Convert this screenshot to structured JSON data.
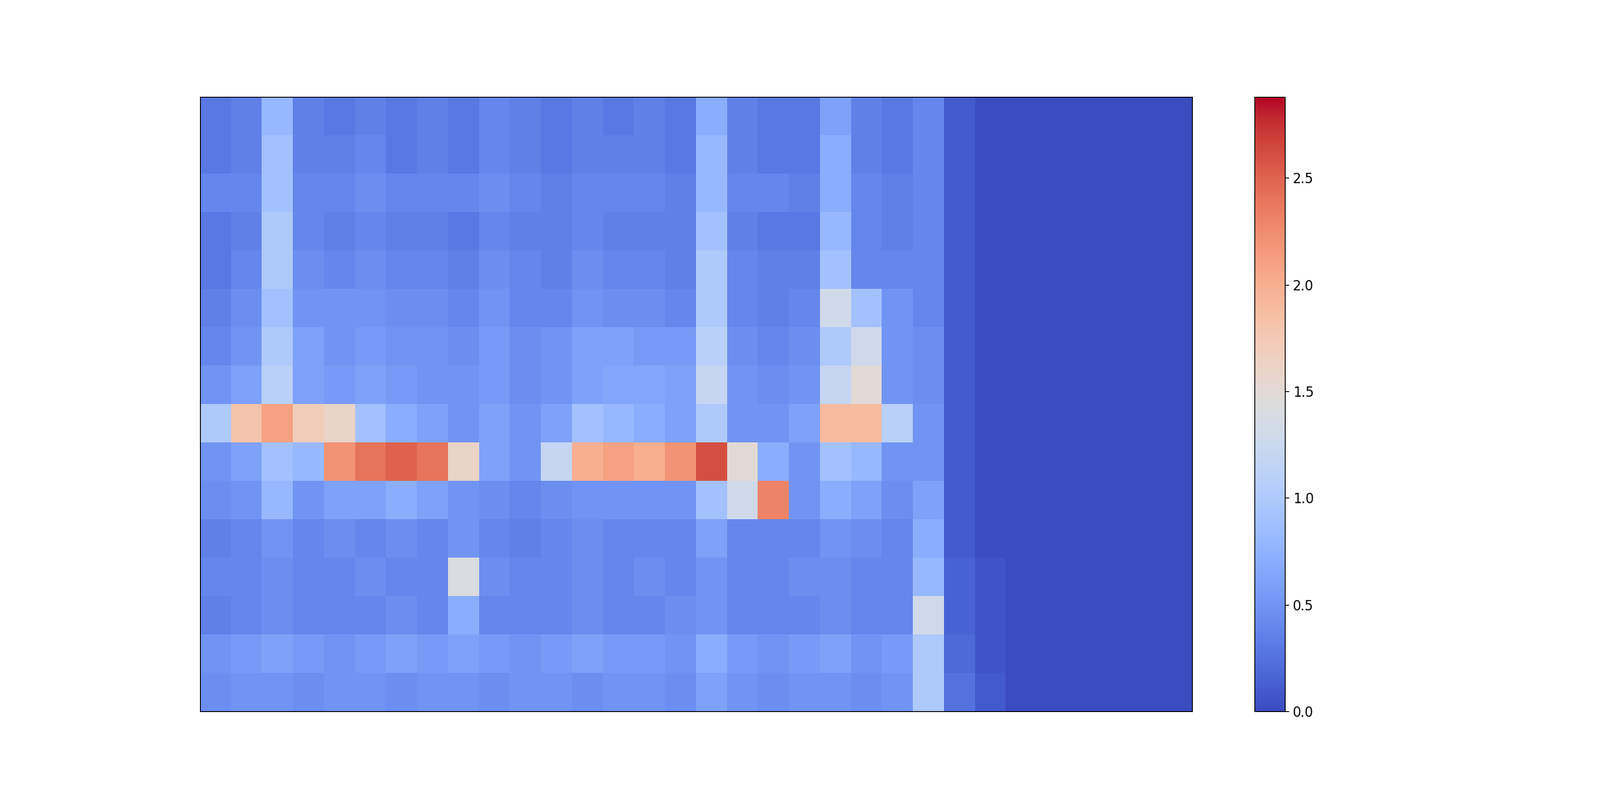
{
  "chart_data": {
    "type": "heatmap",
    "tick_labels": false,
    "cells": [
      [
        0.3,
        0.35,
        0.8,
        0.35,
        0.3,
        0.35,
        0.3,
        0.35,
        0.3,
        0.4,
        0.35,
        0.3,
        0.35,
        0.3,
        0.35,
        0.3,
        0.7,
        0.35,
        0.3,
        0.3,
        0.6,
        0.35,
        0.3,
        0.4,
        0.1,
        0,
        0,
        0,
        0,
        0,
        0,
        0
      ],
      [
        0.3,
        0.35,
        0.9,
        0.35,
        0.35,
        0.4,
        0.3,
        0.35,
        0.3,
        0.4,
        0.35,
        0.3,
        0.35,
        0.35,
        0.35,
        0.3,
        0.8,
        0.35,
        0.3,
        0.3,
        0.7,
        0.35,
        0.3,
        0.4,
        0.1,
        0,
        0,
        0,
        0,
        0,
        0,
        0
      ],
      [
        0.4,
        0.4,
        0.9,
        0.4,
        0.4,
        0.45,
        0.4,
        0.4,
        0.4,
        0.45,
        0.4,
        0.35,
        0.4,
        0.4,
        0.4,
        0.35,
        0.8,
        0.4,
        0.4,
        0.35,
        0.7,
        0.4,
        0.35,
        0.4,
        0.1,
        0,
        0,
        0,
        0,
        0,
        0,
        0
      ],
      [
        0.3,
        0.35,
        1.0,
        0.4,
        0.35,
        0.4,
        0.35,
        0.35,
        0.3,
        0.4,
        0.35,
        0.35,
        0.4,
        0.35,
        0.35,
        0.35,
        0.9,
        0.35,
        0.3,
        0.3,
        0.8,
        0.4,
        0.35,
        0.4,
        0.1,
        0,
        0,
        0,
        0,
        0,
        0,
        0
      ],
      [
        0.3,
        0.4,
        1.0,
        0.45,
        0.4,
        0.45,
        0.4,
        0.4,
        0.35,
        0.45,
        0.4,
        0.35,
        0.45,
        0.4,
        0.4,
        0.35,
        1.0,
        0.4,
        0.35,
        0.35,
        0.9,
        0.4,
        0.4,
        0.4,
        0.1,
        0,
        0,
        0,
        0,
        0,
        0,
        0
      ],
      [
        0.35,
        0.45,
        0.9,
        0.5,
        0.5,
        0.5,
        0.45,
        0.45,
        0.4,
        0.5,
        0.4,
        0.4,
        0.5,
        0.45,
        0.45,
        0.4,
        1.0,
        0.4,
        0.35,
        0.4,
        1.3,
        0.9,
        0.5,
        0.4,
        0.1,
        0,
        0,
        0,
        0,
        0,
        0,
        0
      ],
      [
        0.4,
        0.5,
        1.0,
        0.6,
        0.5,
        0.55,
        0.5,
        0.5,
        0.45,
        0.55,
        0.45,
        0.5,
        0.6,
        0.6,
        0.55,
        0.55,
        1.1,
        0.45,
        0.4,
        0.45,
        1.0,
        1.3,
        0.5,
        0.45,
        0.1,
        0,
        0,
        0,
        0,
        0,
        0,
        0
      ],
      [
        0.5,
        0.6,
        1.1,
        0.6,
        0.55,
        0.6,
        0.55,
        0.5,
        0.5,
        0.55,
        0.45,
        0.5,
        0.6,
        0.65,
        0.65,
        0.6,
        1.2,
        0.5,
        0.45,
        0.5,
        1.2,
        1.5,
        0.5,
        0.45,
        0.1,
        0,
        0,
        0,
        0,
        0,
        0,
        0
      ],
      [
        1.0,
        1.8,
        2.1,
        1.7,
        1.6,
        0.9,
        0.7,
        0.6,
        0.5,
        0.6,
        0.5,
        0.6,
        0.9,
        0.8,
        0.7,
        0.6,
        1.0,
        0.5,
        0.5,
        0.6,
        1.9,
        1.9,
        1.1,
        0.5,
        0.1,
        0,
        0,
        0,
        0,
        0,
        0,
        0
      ],
      [
        0.5,
        0.6,
        0.9,
        0.8,
        2.2,
        2.4,
        2.5,
        2.4,
        1.6,
        0.6,
        0.5,
        1.2,
        2.0,
        2.1,
        2.0,
        2.2,
        2.6,
        1.5,
        0.7,
        0.5,
        0.9,
        0.8,
        0.5,
        0.5,
        0.1,
        0,
        0,
        0,
        0,
        0,
        0,
        0
      ],
      [
        0.45,
        0.5,
        0.8,
        0.5,
        0.6,
        0.6,
        0.7,
        0.6,
        0.5,
        0.45,
        0.4,
        0.45,
        0.5,
        0.5,
        0.5,
        0.5,
        0.9,
        1.3,
        2.3,
        0.5,
        0.7,
        0.6,
        0.45,
        0.6,
        0.1,
        0,
        0,
        0,
        0,
        0,
        0,
        0
      ],
      [
        0.35,
        0.4,
        0.5,
        0.4,
        0.45,
        0.4,
        0.45,
        0.4,
        0.5,
        0.4,
        0.35,
        0.4,
        0.45,
        0.4,
        0.4,
        0.4,
        0.6,
        0.4,
        0.4,
        0.4,
        0.5,
        0.45,
        0.4,
        0.7,
        0.1,
        0,
        0,
        0,
        0,
        0,
        0,
        0
      ],
      [
        0.4,
        0.4,
        0.45,
        0.4,
        0.4,
        0.45,
        0.4,
        0.4,
        1.4,
        0.45,
        0.4,
        0.4,
        0.45,
        0.4,
        0.45,
        0.4,
        0.5,
        0.4,
        0.4,
        0.45,
        0.45,
        0.4,
        0.4,
        0.8,
        0.15,
        0.05,
        0,
        0,
        0,
        0,
        0,
        0
      ],
      [
        0.35,
        0.4,
        0.45,
        0.4,
        0.4,
        0.4,
        0.45,
        0.4,
        0.7,
        0.4,
        0.4,
        0.4,
        0.45,
        0.4,
        0.4,
        0.45,
        0.5,
        0.4,
        0.4,
        0.4,
        0.45,
        0.4,
        0.4,
        1.3,
        0.15,
        0.05,
        0,
        0,
        0,
        0,
        0,
        0
      ],
      [
        0.5,
        0.55,
        0.6,
        0.55,
        0.5,
        0.55,
        0.6,
        0.55,
        0.6,
        0.55,
        0.5,
        0.55,
        0.6,
        0.55,
        0.55,
        0.5,
        0.7,
        0.55,
        0.5,
        0.55,
        0.6,
        0.5,
        0.55,
        1.0,
        0.2,
        0.05,
        0,
        0,
        0,
        0,
        0,
        0
      ],
      [
        0.45,
        0.5,
        0.5,
        0.45,
        0.5,
        0.5,
        0.45,
        0.5,
        0.5,
        0.45,
        0.5,
        0.5,
        0.45,
        0.5,
        0.5,
        0.45,
        0.6,
        0.5,
        0.45,
        0.5,
        0.5,
        0.45,
        0.5,
        1.0,
        0.25,
        0.1,
        0,
        0,
        0,
        0,
        0,
        0
      ]
    ],
    "colorbar_range": [
      0,
      2.88
    ],
    "colorbar_ticks": [
      {
        "value": 0,
        "label": "0.0"
      },
      {
        "value": 0.5,
        "label": "0.5"
      },
      {
        "value": 1,
        "label": "1.0"
      },
      {
        "value": 1.5,
        "label": "1.5"
      },
      {
        "value": 2,
        "label": "2.0"
      },
      {
        "value": 2.5,
        "label": "2.5"
      }
    ]
  }
}
